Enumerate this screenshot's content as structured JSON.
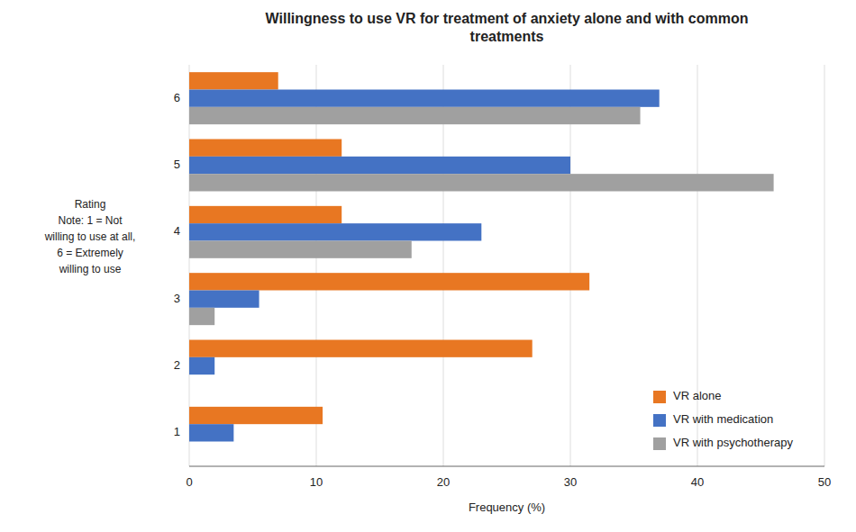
{
  "chart_data": {
    "type": "bar",
    "orientation": "horizontal",
    "title": "Willingness to use VR for treatment of anxiety alone and with common\ntreatments",
    "xlabel": "Frequency (%)",
    "ylabel": "Rating\nNote: 1 = Not\nwilling to use at all,\n6 = Extremely\nwilling to use",
    "categories": [
      "1",
      "2",
      "3",
      "4",
      "5",
      "6"
    ],
    "series": [
      {
        "name": "VR alone",
        "color": "#E87722",
        "values": [
          10.5,
          27.0,
          31.5,
          12.0,
          12.0,
          7.0
        ]
      },
      {
        "name": "VR with medication",
        "color": "#4472C4",
        "values": [
          3.5,
          2.0,
          5.5,
          23.0,
          30.0,
          37.0
        ]
      },
      {
        "name": "VR with psychotherapy",
        "color": "#A0A0A0",
        "values": [
          0.0,
          0.0,
          2.0,
          17.5,
          46.0,
          35.5
        ]
      }
    ],
    "xlim": [
      0,
      50
    ],
    "xticks": [
      0,
      10,
      20,
      30,
      40,
      50
    ],
    "grid": true,
    "legend": "lower right"
  }
}
